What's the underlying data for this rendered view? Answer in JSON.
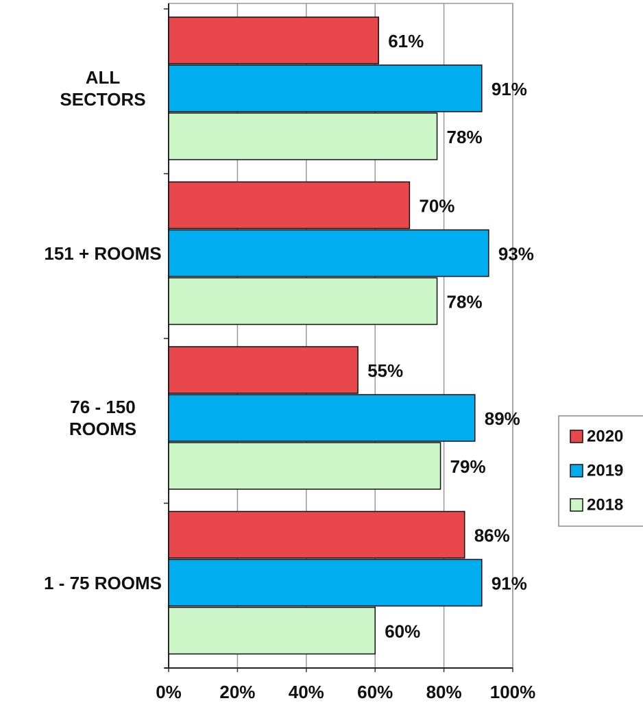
{
  "chart_data": {
    "type": "barh",
    "categories": [
      "ALL\nSECTORS",
      "151 + ROOMS",
      "76 - 150\nROOMS",
      "1 - 75 ROOMS"
    ],
    "series": [
      {
        "name": "2020",
        "color": "#e8474c",
        "values": [
          61,
          70,
          55,
          86
        ],
        "value_labels": [
          "61%",
          "70%",
          "55%",
          "86%"
        ]
      },
      {
        "name": "2019",
        "color": "#00aeef",
        "values": [
          91,
          93,
          89,
          91
        ],
        "value_labels": [
          "91%",
          "93%",
          "89%",
          "91%"
        ]
      },
      {
        "name": "2018",
        "color": "#ccf5c8",
        "values": [
          78,
          78,
          79,
          60
        ],
        "value_labels": [
          "78%",
          "78%",
          "79%",
          "60%"
        ]
      }
    ],
    "xlim": [
      0,
      100
    ],
    "xticks": [
      {
        "value": 0,
        "label": "0%"
      },
      {
        "value": 20,
        "label": "20%"
      },
      {
        "value": 40,
        "label": "40%"
      },
      {
        "value": 60,
        "label": "60%"
      },
      {
        "value": 80,
        "label": "80%"
      },
      {
        "value": 100,
        "label": "100%"
      }
    ],
    "grid": true,
    "legend": "right"
  }
}
